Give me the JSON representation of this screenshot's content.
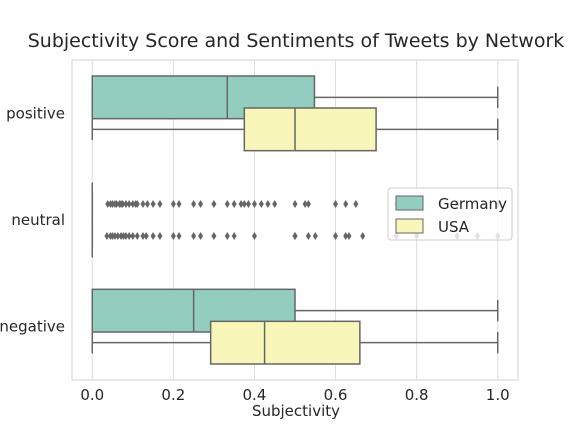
{
  "chart_data": {
    "type": "boxplot",
    "orientation": "horizontal",
    "title": "Subjectivity Score and Sentiments of Tweets by Network",
    "xlabel": "Subjectivity",
    "ylabel": "",
    "xlim": [
      -0.05,
      1.05
    ],
    "xticks": [
      0.0,
      0.2,
      0.4,
      0.6,
      0.8,
      1.0
    ],
    "xtick_labels": [
      "0.0",
      "0.2",
      "0.4",
      "0.6",
      "0.8",
      "1.0"
    ],
    "grid": "vertical",
    "categories": [
      "positive",
      "neutral",
      "negative"
    ],
    "legend": {
      "placement": "right"
    },
    "series": [
      {
        "name": "Germany",
        "color": "#93cdc0",
        "boxes": [
          {
            "category": "positive",
            "whisker_low": 0.0,
            "q1": 0.0,
            "median": 0.333,
            "q3": 0.548,
            "whisker_high": 1.0,
            "outliers": []
          },
          {
            "category": "neutral",
            "whisker_low": 0.0,
            "q1": 0.0,
            "median": 0.0,
            "q3": 0.0,
            "whisker_high": 0.0,
            "outliers": [
              0.038,
              0.045,
              0.05,
              0.056,
              0.06,
              0.067,
              0.071,
              0.075,
              0.083,
              0.091,
              0.1,
              0.107,
              0.111,
              0.125,
              0.136,
              0.15,
              0.167,
              0.2,
              0.214,
              0.25,
              0.267,
              0.3,
              0.333,
              0.35,
              0.367,
              0.375,
              0.385,
              0.4,
              0.417,
              0.433,
              0.45,
              0.5,
              0.525,
              0.533,
              0.6,
              0.625,
              0.65,
              0.75,
              0.8,
              0.9,
              1.0
            ]
          },
          {
            "category": "negative",
            "whisker_low": 0.0,
            "q1": 0.0,
            "median": 0.25,
            "q3": 0.5,
            "whisker_high": 1.0,
            "outliers": []
          }
        ]
      },
      {
        "name": "USA",
        "color": "#f8f7b9",
        "boxes": [
          {
            "category": "positive",
            "whisker_low": 0.0,
            "q1": 0.375,
            "median": 0.5,
            "q3": 0.7,
            "whisker_high": 1.0,
            "outliers": []
          },
          {
            "category": "neutral",
            "whisker_low": 0.0,
            "q1": 0.0,
            "median": 0.0,
            "q3": 0.0,
            "whisker_high": 0.0,
            "outliers": [
              0.036,
              0.045,
              0.05,
              0.056,
              0.063,
              0.071,
              0.077,
              0.083,
              0.091,
              0.1,
              0.111,
              0.125,
              0.133,
              0.15,
              0.167,
              0.2,
              0.214,
              0.25,
              0.267,
              0.3,
              0.333,
              0.35,
              0.4,
              0.5,
              0.5,
              0.533,
              0.55,
              0.6,
              0.625,
              0.633,
              0.667,
              0.75,
              0.8,
              0.9,
              0.95,
              1.0
            ]
          },
          {
            "category": "negative",
            "whisker_low": 0.0,
            "q1": 0.292,
            "median": 0.425,
            "q3": 0.66,
            "whisker_high": 1.0,
            "outliers": []
          }
        ]
      }
    ]
  }
}
